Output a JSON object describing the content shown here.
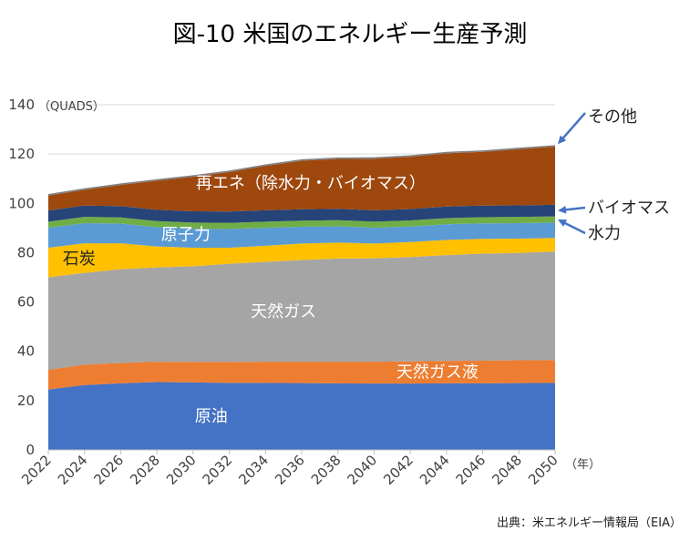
{
  "title": "図-10 米国のエネルギー生産予測",
  "source": "出典：米エネルギー情報局（EIA）",
  "chart_data": {
    "type": "area",
    "stacked": true,
    "y_unit_label": "（QUADS）",
    "x_unit_label": "（年）",
    "ylim": [
      0,
      140
    ],
    "yticks": [
      0,
      20,
      40,
      60,
      80,
      100,
      120,
      140
    ],
    "xlim": [
      2022,
      2050
    ],
    "xticks": [
      2022,
      2024,
      2026,
      2028,
      2030,
      2032,
      2034,
      2036,
      2038,
      2040,
      2042,
      2044,
      2046,
      2048,
      2050
    ],
    "grid": "horizontal",
    "x": [
      2022,
      2024,
      2026,
      2028,
      2030,
      2032,
      2034,
      2036,
      2038,
      2040,
      2042,
      2044,
      2046,
      2048,
      2050
    ],
    "series": [
      {
        "name": "原油",
        "color": "#4472C4",
        "label_color": "#ffffff",
        "values": [
          24.5,
          26.3,
          27.0,
          27.5,
          27.4,
          27.2,
          27.2,
          27.1,
          27.0,
          26.9,
          26.9,
          27.0,
          27.0,
          27.1,
          27.2
        ]
      },
      {
        "name": "天然ガス液",
        "color": "#ED7D31",
        "label_color": "#ffffff",
        "values": [
          8.0,
          8.3,
          8.3,
          8.3,
          8.3,
          8.5,
          8.6,
          8.7,
          8.8,
          8.9,
          9.0,
          9.1,
          9.2,
          9.3,
          9.3
        ]
      },
      {
        "name": "天然ガス",
        "color": "#A5A5A5",
        "label_color": "#ffffff",
        "values": [
          37.5,
          37.2,
          38.0,
          38.2,
          38.8,
          39.8,
          40.5,
          41.2,
          41.8,
          41.9,
          42.3,
          42.9,
          43.4,
          43.5,
          44.0
        ]
      },
      {
        "name": "石炭",
        "color": "#FFC000",
        "label_color": "#222222",
        "values": [
          12.0,
          12.0,
          10.5,
          8.5,
          7.5,
          6.5,
          6.5,
          6.7,
          6.5,
          6.0,
          6.1,
          6.2,
          6.0,
          5.8,
          5.5
        ]
      },
      {
        "name": "原子力",
        "color": "#5B9BD5",
        "label_color": "#ffffff",
        "values": [
          8.1,
          8.2,
          8.0,
          7.8,
          7.7,
          7.6,
          7.3,
          6.8,
          6.6,
          6.4,
          6.3,
          6.3,
          6.3,
          6.3,
          6.2
        ]
      },
      {
        "name": "水力",
        "color": "#70AD47",
        "label_color": "#222222",
        "values": [
          2.5,
          2.5,
          2.5,
          2.5,
          2.5,
          2.5,
          2.5,
          2.5,
          2.5,
          2.5,
          2.5,
          2.5,
          2.5,
          2.5,
          2.5
        ]
      },
      {
        "name": "バイオマス",
        "color": "#264478",
        "label_color": "#222222",
        "values": [
          4.5,
          4.6,
          4.6,
          4.6,
          4.6,
          4.6,
          4.6,
          4.6,
          4.6,
          4.6,
          4.6,
          4.7,
          4.7,
          4.7,
          4.7
        ]
      },
      {
        "name": "再エネ（除水力・バイオマス）",
        "color": "#9E480E",
        "label_color": "#ffffff",
        "values": [
          6.1,
          6.4,
          8.6,
          11.8,
          14.0,
          16.0,
          18.0,
          19.7,
          20.2,
          20.9,
          21.2,
          21.6,
          21.8,
          22.8,
          23.6
        ]
      },
      {
        "name": "その他",
        "color": "#7F7F7F",
        "label_color": "#222222",
        "values": [
          0.6,
          0.6,
          0.6,
          0.6,
          0.6,
          0.6,
          0.6,
          0.6,
          0.6,
          0.6,
          0.6,
          0.6,
          0.6,
          0.6,
          0.6
        ]
      }
    ]
  }
}
